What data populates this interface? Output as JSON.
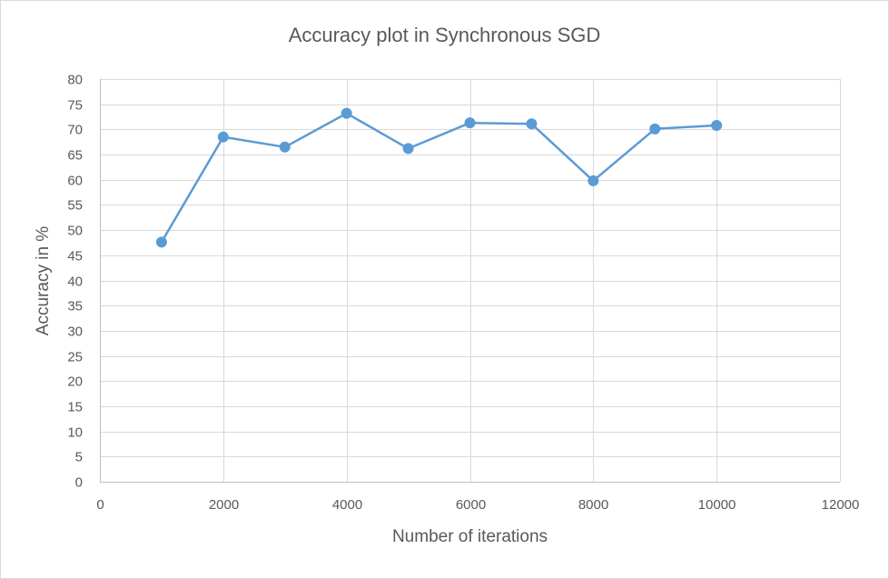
{
  "chart_data": {
    "type": "line",
    "title": "Accuracy plot in Synchronous SGD",
    "xlabel": "Number of iterations",
    "ylabel": "Accuracy in %",
    "x": [
      1000,
      2000,
      3000,
      4000,
      5000,
      6000,
      7000,
      8000,
      9000,
      10000
    ],
    "series": [
      {
        "values": [
          47.6,
          68.5,
          66.5,
          73.2,
          66.2,
          71.3,
          71.1,
          59.8,
          70.1,
          70.8
        ]
      }
    ],
    "xlim": [
      0,
      12000
    ],
    "ylim": [
      0,
      80
    ],
    "x_ticks": [
      0,
      2000,
      4000,
      6000,
      8000,
      10000,
      12000
    ],
    "y_ticks": [
      0,
      5,
      10,
      15,
      20,
      25,
      30,
      35,
      40,
      45,
      50,
      55,
      60,
      65,
      70,
      75,
      80
    ],
    "grid": true,
    "legend": "none",
    "colors": {
      "line": "#5b9bd5",
      "grid": "#d9d9d9",
      "text": "#595959"
    }
  }
}
